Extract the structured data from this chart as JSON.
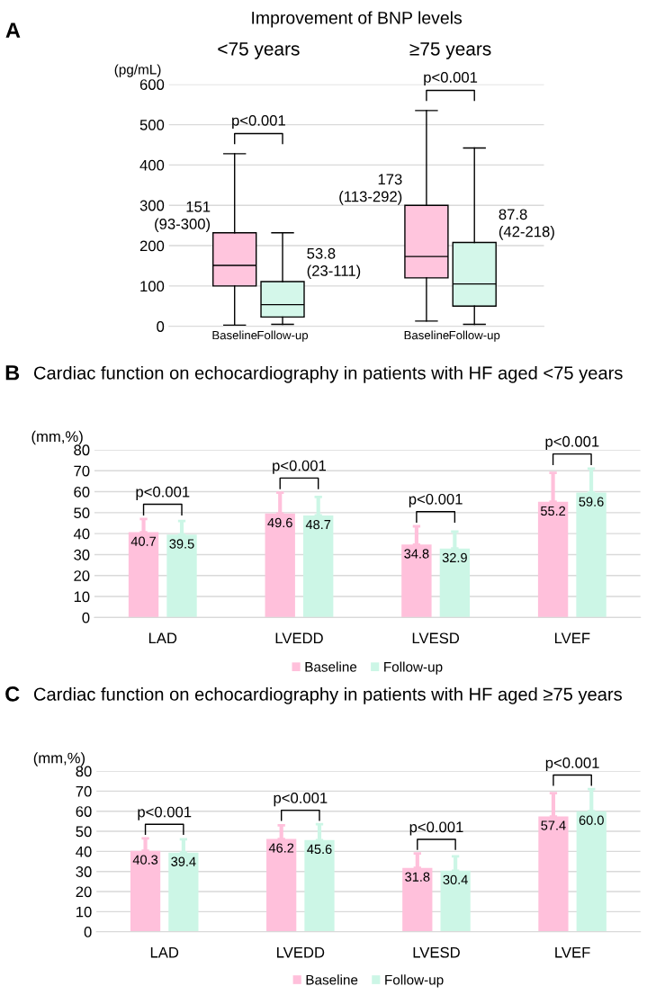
{
  "chart_data": [
    {
      "type": "box",
      "title": "Improvement of BNP levels",
      "ylabel": "(pg/mL)",
      "categories": [
        "Baseline",
        "Follow-up",
        null,
        null,
        "Baseline",
        "Follow-up"
      ],
      "boxes": [
        {
          "low": 3,
          "q1": 100,
          "median": 151,
          "q3": 232,
          "high": 428
        },
        {
          "low": 5,
          "q1": 23,
          "median": 53.8,
          "q3": 111,
          "high": 232
        },
        null,
        null,
        {
          "low": 13,
          "q1": 120,
          "median": 173,
          "q3": 300,
          "high": 535
        },
        {
          "low": 5,
          "q1": 50,
          "median": 105,
          "q3": 208,
          "high": 442
        }
      ],
      "colors": [
        "#ffc5dd",
        "#d4f7ea",
        null,
        null,
        "#ffc5dd",
        "#d4f7ea"
      ],
      "ylim": [
        0,
        600
      ],
      "yticks": [
        0,
        100,
        200,
        300,
        400,
        500,
        600
      ],
      "grid": "y",
      "annotations": [
        "A",
        "<75 years",
        "≥75 years",
        "p<0.001",
        "p<0.001",
        "151\n(93-300)",
        "53.8\n(23-111)",
        "173\n(113-292)",
        "87.8\n(42-218)"
      ]
    },
    {
      "type": "bar",
      "title": "Cardiac function on echocardiography in patients with HF aged <75 years",
      "ylabel": "(mm,%)",
      "categories": [
        "LAD",
        "LVEDD",
        "LVESD",
        "LVEF"
      ],
      "series": [
        {
          "name": "Baseline",
          "color": "#ffc0db",
          "values": [
            40.7,
            49.6,
            34.8,
            55.2
          ],
          "value_labels": [
            "40.7",
            "49.6",
            "34.8",
            "55.2"
          ],
          "errors": [
            [
              40.7,
              47
            ],
            [
              49.6,
              59.5
            ],
            [
              34.8,
              43.5
            ],
            [
              55.2,
              69
            ]
          ]
        },
        {
          "name": "Follow-up",
          "color": "#ccf6e6",
          "values": [
            39.5,
            48.7,
            32.9,
            59.6
          ],
          "value_labels": [
            "39.5",
            "48.7",
            "32.9",
            "59.6"
          ],
          "errors": [
            [
              39.5,
              46
            ],
            [
              48.7,
              57.5
            ],
            [
              32.9,
              41
            ],
            [
              59.6,
              71
            ]
          ]
        }
      ],
      "ylim": [
        0,
        80
      ],
      "yticks": [
        0,
        10,
        20,
        30,
        40,
        50,
        60,
        70,
        80
      ],
      "grid": "y",
      "legend": "bottom",
      "annotations": [
        "B",
        "p<0.001",
        "p<0.001",
        "p<0.001",
        "p<0.001"
      ]
    },
    {
      "type": "bar",
      "title": "Cardiac function on echocardiography in patients with HF aged ≥75 years",
      "ylabel": "(mm,%)",
      "categories": [
        "LAD",
        "LVEDD",
        "LVESD",
        "LVEF"
      ],
      "series": [
        {
          "name": "Baseline",
          "color": "#ffc0db",
          "values": [
            40.3,
            46.2,
            31.8,
            57.4
          ],
          "value_labels": [
            "40.3",
            "46.2",
            "31.8",
            "57.4"
          ],
          "errors": [
            [
              40.3,
              46.5
            ],
            [
              46.2,
              53
            ],
            [
              31.8,
              39
            ],
            [
              57.4,
              69
            ]
          ]
        },
        {
          "name": "Follow-up",
          "color": "#ccf6e6",
          "values": [
            39.4,
            45.6,
            30.4,
            60.0
          ],
          "value_labels": [
            "39.4",
            "45.6",
            "30.4",
            "60.0"
          ],
          "errors": [
            [
              39.4,
              46
            ],
            [
              45.6,
              53.5
            ],
            [
              30.4,
              37.5
            ],
            [
              60.0,
              71
            ]
          ]
        }
      ],
      "ylim": [
        0,
        80
      ],
      "yticks": [
        0,
        10,
        20,
        30,
        40,
        50,
        60,
        70,
        80
      ],
      "grid": "y",
      "legend": "bottom",
      "annotations": [
        "C",
        "p<0.001",
        "p<0.001",
        "p<0.001",
        "p<0.001"
      ]
    }
  ]
}
